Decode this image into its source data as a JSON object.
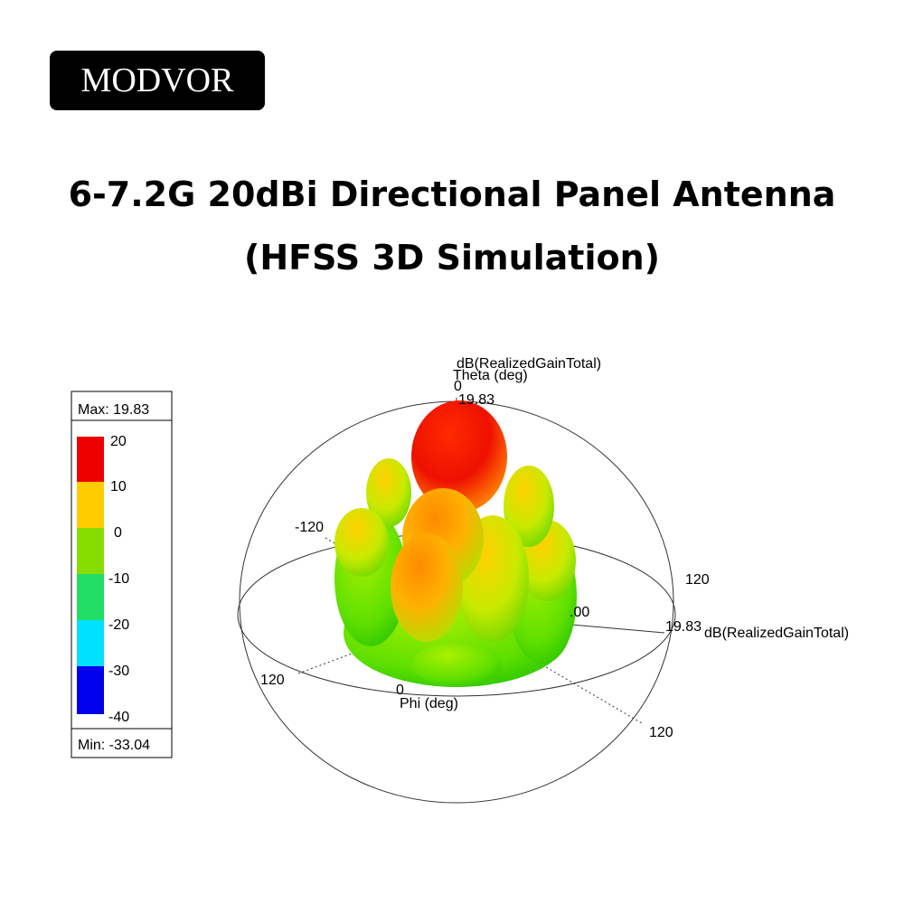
{
  "brand": "MODVOR",
  "title": [
    "6-7.2G 20dBi Directional Panel Antenna",
    "(HFSS 3D Simulation)"
  ],
  "legend": {
    "max": "Max: 19.83",
    "min": "Min: -33.04",
    "ticks": [
      "20",
      "10",
      "0",
      "-10",
      "-20",
      "-30",
      "-40"
    ]
  },
  "plot": {
    "quantity_top": "dB(RealizedGainTotal)",
    "theta_axis": "Theta (deg)",
    "theta_zero": "0",
    "max_top": "19.83",
    "left_tick": "-120",
    "right_tick": "120",
    "lower_left_tick": "120",
    "lower_right_tick": "120",
    "phi_zero": "0",
    "phi_axis": "Phi (deg)",
    "center_label": ".00",
    "max_right": "19.83",
    "quantity_right": "dB(RealizedGainTotal)"
  }
}
